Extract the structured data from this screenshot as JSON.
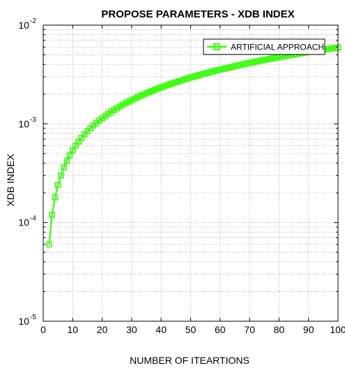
{
  "chart_data": {
    "type": "line",
    "title": "PROPOSE PARAMETERS - XDB INDEX",
    "xlabel": "NUMBER OF ITEARTIONS",
    "ylabel": "XDB INDEX",
    "xlim": [
      0,
      100
    ],
    "ylim": [
      1e-05,
      0.01
    ],
    "yscale": "log",
    "x_ticks": [
      0,
      10,
      20,
      30,
      40,
      50,
      60,
      70,
      80,
      90,
      100
    ],
    "y_ticks": [
      {
        "base": "10",
        "exp": "-5",
        "value": 1e-05
      },
      {
        "base": "10",
        "exp": "-4",
        "value": 0.0001
      },
      {
        "base": "10",
        "exp": "-3",
        "value": 0.001
      },
      {
        "base": "10",
        "exp": "-2",
        "value": 0.01
      }
    ],
    "grid": true,
    "legend_position": "top-right",
    "series": [
      {
        "name": "ARTIFICIAL APPROACH",
        "color": "#33ff00",
        "marker": "square",
        "x": [
          2,
          3,
          4,
          5,
          6,
          7,
          8,
          9,
          10,
          11,
          12,
          13,
          14,
          15,
          16,
          17,
          18,
          19,
          20,
          21,
          22,
          23,
          24,
          25,
          26,
          27,
          28,
          29,
          30,
          31,
          32,
          33,
          34,
          35,
          36,
          37,
          38,
          39,
          40,
          41,
          42,
          43,
          44,
          45,
          46,
          47,
          48,
          49,
          50,
          51,
          52,
          53,
          54,
          55,
          56,
          57,
          58,
          59,
          60,
          61,
          62,
          63,
          64,
          65,
          66,
          67,
          68,
          69,
          70,
          71,
          72,
          73,
          74,
          75,
          76,
          77,
          78,
          79,
          80,
          81,
          82,
          83,
          84,
          85,
          86,
          87,
          88,
          89,
          90,
          91,
          92,
          93,
          94,
          95,
          96,
          97,
          98,
          99,
          100
        ],
        "y": [
          6e-05,
          0.00012,
          0.00018,
          0.00024,
          0.0003,
          0.00036,
          0.00042,
          0.00048,
          0.00054,
          0.0006,
          0.00066,
          0.00072,
          0.00078,
          0.00084,
          0.0009,
          0.00096,
          0.00102,
          0.00108,
          0.00114,
          0.0012,
          0.00126,
          0.00132,
          0.00138,
          0.00144,
          0.0015,
          0.00156,
          0.00162,
          0.00168,
          0.00174,
          0.0018,
          0.00186,
          0.00192,
          0.00198,
          0.00204,
          0.0021,
          0.00216,
          0.00222,
          0.00228,
          0.00234,
          0.0024,
          0.00246,
          0.00252,
          0.00258,
          0.00264,
          0.0027,
          0.00276,
          0.00282,
          0.00288,
          0.00294,
          0.003,
          0.00306,
          0.00312,
          0.00318,
          0.00324,
          0.0033,
          0.00336,
          0.00342,
          0.00348,
          0.00354,
          0.0036,
          0.00366,
          0.00372,
          0.00378,
          0.00384,
          0.0039,
          0.00396,
          0.00402,
          0.00408,
          0.00414,
          0.0042,
          0.00426,
          0.00432,
          0.00438,
          0.00444,
          0.0045,
          0.00456,
          0.00462,
          0.00468,
          0.00474,
          0.0048,
          0.00486,
          0.00492,
          0.00498,
          0.00504,
          0.0051,
          0.00516,
          0.00522,
          0.00528,
          0.00534,
          0.0054,
          0.00546,
          0.00552,
          0.00558,
          0.00564,
          0.0057,
          0.00576,
          0.00582,
          0.00588,
          0.00594
        ]
      }
    ]
  }
}
